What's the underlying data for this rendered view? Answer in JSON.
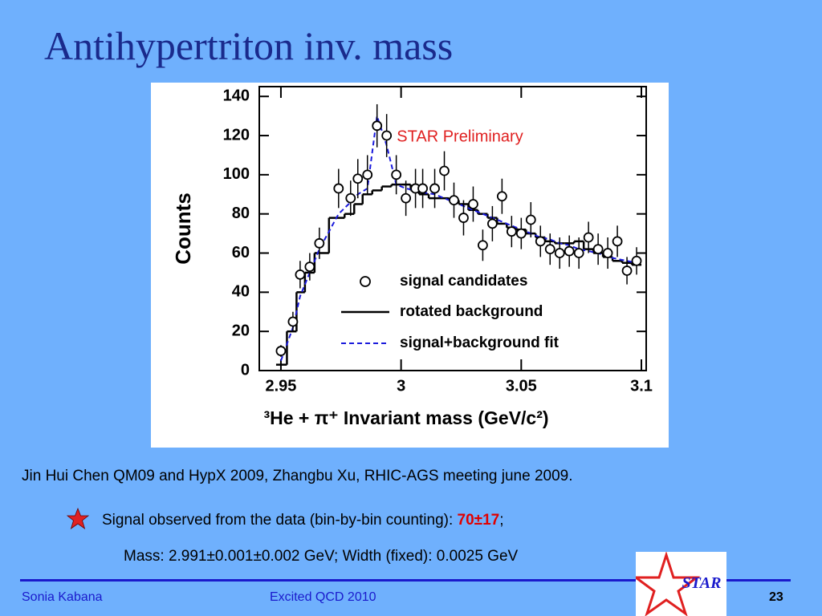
{
  "slide": {
    "title": "Antihypertriton inv. mass",
    "citation": "Jin Hui Chen QM09 and HypX 2009,  Zhangbu Xu, RHIC-AGS meeting june 2009.",
    "bullet": [
      "Signal observed from the data (bin-by-bin counting): ",
      "70±17",
      ";"
    ],
    "mass_line": "Mass: 2.991±0.001±0.002 GeV; Width (fixed): 0.0025 GeV",
    "footer": {
      "author": "Sonia Kabana",
      "event": "Excited QCD 2010",
      "page": "23"
    },
    "logo": "STAR"
  },
  "chart_data": {
    "type": "scatter",
    "annotation": "STAR Preliminary",
    "x_label": "³He + π⁺ Invariant mass (GeV/c²)",
    "y_label": "Counts",
    "x": [
      2.95,
      2.955,
      2.958,
      2.962,
      2.966,
      2.974,
      2.979,
      2.982,
      2.986,
      2.99,
      2.994,
      2.998,
      3.002,
      3.006,
      3.009,
      3.014,
      3.018,
      3.022,
      3.026,
      3.03,
      3.034,
      3.038,
      3.042,
      3.046,
      3.05,
      3.054,
      3.058,
      3.062,
      3.066,
      3.07,
      3.074,
      3.078,
      3.082,
      3.086,
      3.09,
      3.094,
      3.098
    ],
    "series": [
      {
        "name": "signal candidates",
        "color": "#000000",
        "values": [
          10,
          25,
          49,
          53,
          65,
          93,
          88,
          98,
          100,
          125,
          120,
          100,
          88,
          93,
          93,
          93,
          102,
          87,
          78,
          85,
          64,
          75,
          89,
          71,
          70,
          77,
          66,
          62,
          60,
          61,
          60,
          68,
          62,
          60,
          66,
          51,
          56
        ],
        "errors": [
          3,
          5,
          7,
          7,
          8,
          10,
          9,
          10,
          10,
          11,
          11,
          10,
          9,
          10,
          10,
          10,
          10,
          9,
          9,
          9,
          8,
          9,
          9,
          8,
          8,
          9,
          8,
          8,
          8,
          8,
          8,
          8,
          8,
          8,
          8,
          7,
          7
        ]
      },
      {
        "name": "rotated background",
        "color": "#000000",
        "values": [
          3,
          20,
          40,
          50,
          60,
          78,
          80,
          85,
          90,
          92,
          94,
          95,
          95,
          92,
          90,
          88,
          88,
          87,
          85,
          82,
          80,
          78,
          75,
          73,
          72,
          70,
          68,
          66,
          65,
          65,
          66,
          62,
          60,
          58,
          56,
          55,
          54
        ]
      },
      {
        "name": "signal+background fit",
        "color": "#1a1adc",
        "values": [
          5,
          22,
          38,
          50,
          62,
          80,
          86,
          90,
          93,
          130,
          115,
          95,
          93,
          92,
          91,
          90,
          88,
          86,
          84,
          82,
          80,
          78,
          76,
          74,
          72,
          70,
          68,
          67,
          65,
          64,
          62,
          61,
          60,
          58,
          57,
          56,
          55
        ]
      }
    ],
    "xlim": [
      2.941,
      3.102
    ],
    "xticks": [
      2.95,
      3,
      3.05,
      3.1
    ],
    "ylim": [
      0,
      145
    ],
    "yticks": [
      0,
      20,
      40,
      60,
      80,
      100,
      120,
      140
    ]
  }
}
